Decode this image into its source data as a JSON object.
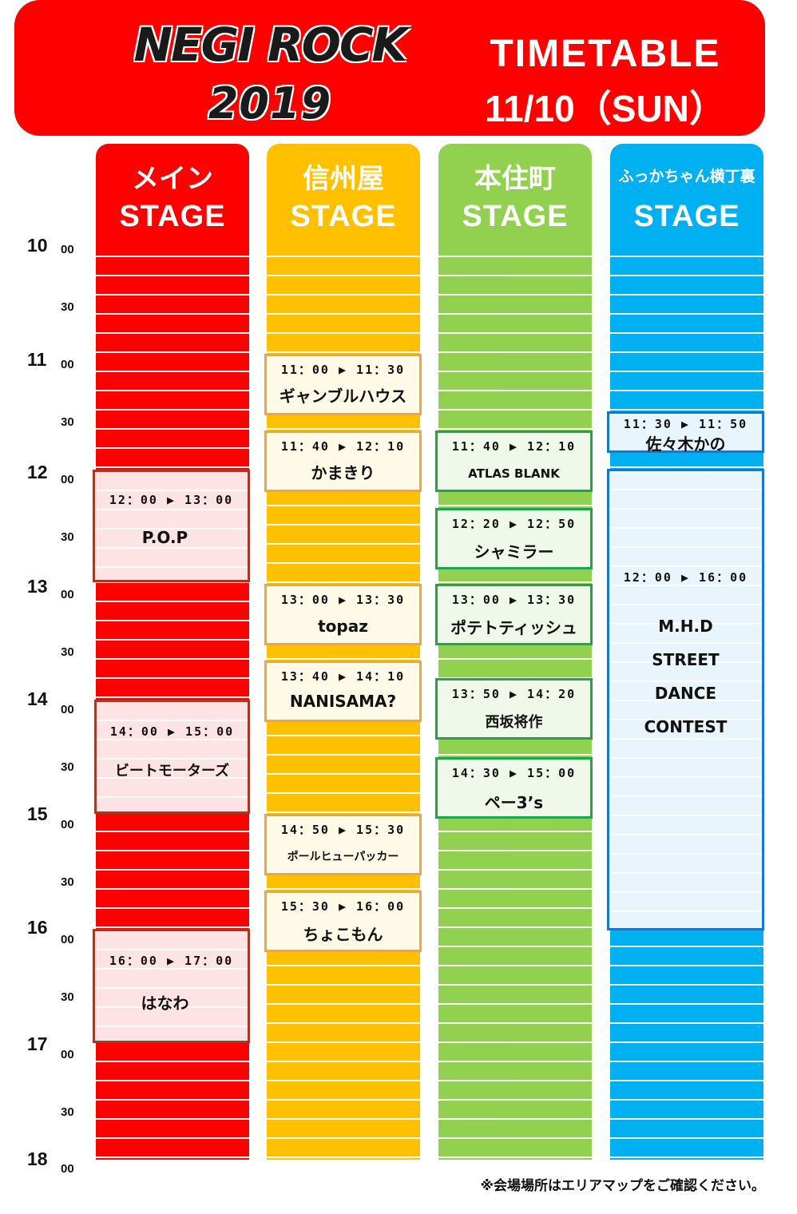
{
  "header": {
    "logo_line1": "NEGI ROCK",
    "logo_line2": "2019",
    "title": "TIMETABLE",
    "date": "11/10（SUN）"
  },
  "stages": [
    {
      "jp": "メイン",
      "en": "STAGE",
      "color": "#ff0000"
    },
    {
      "jp": "信州屋",
      "en": "STAGE",
      "color": "#ffc000"
    },
    {
      "jp": "本住町",
      "en": "STAGE",
      "color": "#92d050"
    },
    {
      "jp": "ふっかちゃん横丁裏",
      "en": "STAGE",
      "color": "#00b0f0"
    }
  ],
  "time_labels": [
    {
      "hour": "10",
      "min": "00"
    },
    {
      "hour": "",
      "min": "30"
    },
    {
      "hour": "11",
      "min": "00"
    },
    {
      "hour": "",
      "min": "30"
    },
    {
      "hour": "12",
      "min": "00"
    },
    {
      "hour": "",
      "min": "30"
    },
    {
      "hour": "13",
      "min": "00"
    },
    {
      "hour": "",
      "min": "30"
    },
    {
      "hour": "14",
      "min": "00"
    },
    {
      "hour": "",
      "min": "30"
    },
    {
      "hour": "15",
      "min": "00"
    },
    {
      "hour": "",
      "min": "30"
    },
    {
      "hour": "16",
      "min": "00"
    },
    {
      "hour": "",
      "min": "30"
    },
    {
      "hour": "17",
      "min": "00"
    },
    {
      "hour": "",
      "min": "30"
    },
    {
      "hour": "18",
      "min": "00"
    }
  ],
  "acts": {
    "main": [
      {
        "time": "12：00 ▶ 13：00",
        "name": "P.O.P"
      },
      {
        "time": "14：00 ▶ 15：00",
        "name": "ビートモーターズ"
      },
      {
        "time": "16：00 ▶ 17：00",
        "name": "はなわ"
      }
    ],
    "shinshuya": [
      {
        "time": "11：00 ▶ 11：30",
        "name": "ギャンブルハウス"
      },
      {
        "time": "11：40 ▶ 12：10",
        "name": "かまきり"
      },
      {
        "time": "13：00 ▶ 13：30",
        "name": "topaz"
      },
      {
        "time": "13：40 ▶ 14：10",
        "name": "NANISAMA?"
      },
      {
        "time": "14：50 ▶ 15：30",
        "name": "ポールヒューパッカー"
      },
      {
        "time": "15：30 ▶ 16：00",
        "name": "ちょこもん"
      }
    ],
    "honjumachi": [
      {
        "time": "11：40 ▶ 12：10",
        "name": "ATLAS BLANK"
      },
      {
        "time": "12：20 ▶ 12：50",
        "name": "シャミラー"
      },
      {
        "time": "13：00 ▶ 13：30",
        "name": "ポテトティッシュ"
      },
      {
        "time": "13：50 ▶ 14：20",
        "name": "西坂将作"
      },
      {
        "time": "14：30 ▶ 15：00",
        "name": "ペー3’s"
      }
    ],
    "fukka": [
      {
        "time": "11：30 ▶ 11：50",
        "name": "佐々木かの"
      },
      {
        "time": "12：00 ▶ 16：00",
        "name_lines": [
          "M.H.D",
          "STREET",
          "DANCE",
          "CONTEST"
        ]
      }
    ]
  },
  "note": "※会場場所はエリアマップをご確認ください。"
}
